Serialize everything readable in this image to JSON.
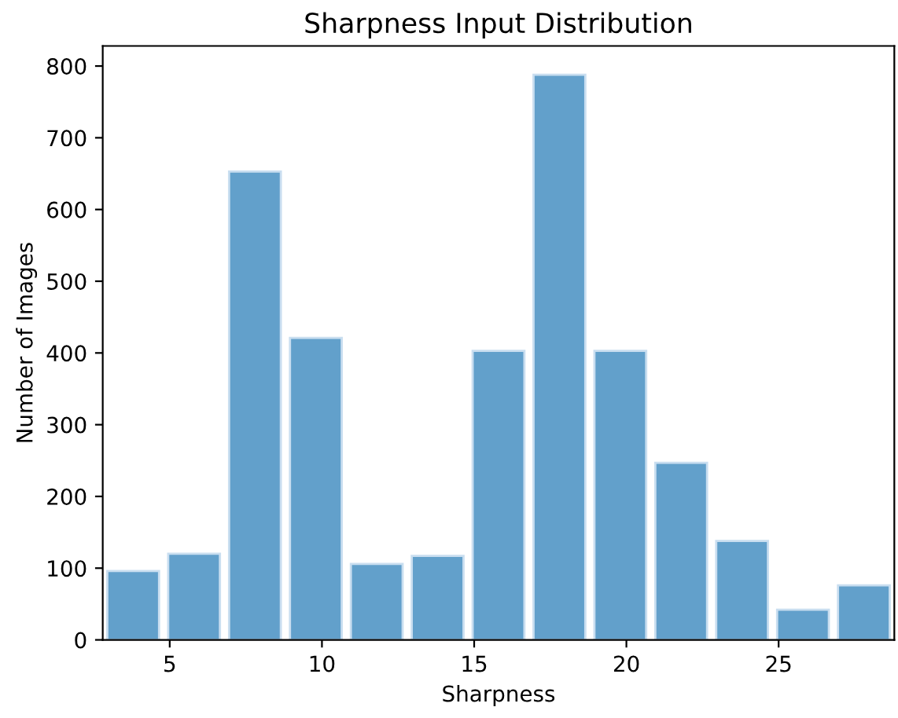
{
  "chart_data": {
    "type": "histogram",
    "title": "Sharpness Input Distribution",
    "xlabel": "Sharpness",
    "ylabel": "Number of Images",
    "bins": [
      2.8,
      4.8,
      6.8,
      8.8,
      10.8,
      12.8,
      14.8,
      16.8,
      18.8,
      20.8,
      22.8,
      24.8,
      26.8,
      28.8
    ],
    "values": [
      96,
      120,
      653,
      421,
      106,
      117,
      403,
      788,
      403,
      247,
      138,
      42,
      76
    ],
    "color": "#62a0cb",
    "xlim": [
      2.8,
      28.8
    ],
    "xticks": [
      5,
      10,
      15,
      20,
      25
    ],
    "ylim": [
      0,
      828
    ],
    "yticks": [
      0,
      100,
      200,
      300,
      400,
      500,
      600,
      700,
      800
    ],
    "grid": false,
    "legend": false
  }
}
